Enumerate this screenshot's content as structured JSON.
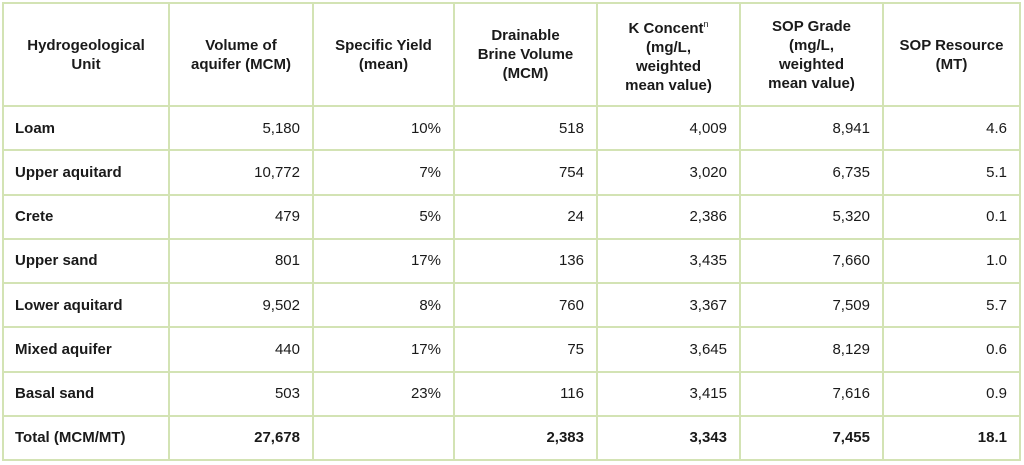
{
  "table": {
    "headers": [
      {
        "lines": [
          "Hydrogeological",
          "Unit"
        ]
      },
      {
        "lines": [
          "Volume of",
          "aquifer (MCM)"
        ]
      },
      {
        "lines": [
          "Specific Yield",
          "(mean)"
        ]
      },
      {
        "lines": [
          "Drainable",
          "Brine Volume",
          "(MCM)"
        ]
      },
      {
        "lines": [
          "K Concent",
          "(mg/L,",
          "weighted",
          "mean value)"
        ],
        "superscript": "n"
      },
      {
        "lines": [
          "SOP Grade",
          "(mg/L,",
          "weighted",
          "mean value)"
        ]
      },
      {
        "lines": [
          "SOP Resource",
          "(MT)"
        ]
      }
    ],
    "rows": [
      [
        "Loam",
        "5,180",
        "10%",
        "518",
        "4,009",
        "8,941",
        "4.6"
      ],
      [
        "Upper aquitard",
        "10,772",
        "7%",
        "754",
        "3,020",
        "6,735",
        "5.1"
      ],
      [
        "Crete",
        "479",
        "5%",
        "24",
        "2,386",
        "5,320",
        "0.1"
      ],
      [
        "Upper sand",
        "801",
        "17%",
        "136",
        "3,435",
        "7,660",
        "1.0"
      ],
      [
        "Lower aquitard",
        "9,502",
        "8%",
        "760",
        "3,367",
        "7,509",
        "5.7"
      ],
      [
        "Mixed aquifer",
        "440",
        "17%",
        "75",
        "3,645",
        "8,129",
        "0.6"
      ],
      [
        "Basal sand",
        "503",
        "23%",
        "116",
        "3,415",
        "7,616",
        "0.9"
      ],
      [
        "Total (MCM/MT)",
        "27,678",
        "",
        "2,383",
        "3,343",
        "7,455",
        "18.1"
      ]
    ],
    "border_color": "#d3e3b4"
  }
}
